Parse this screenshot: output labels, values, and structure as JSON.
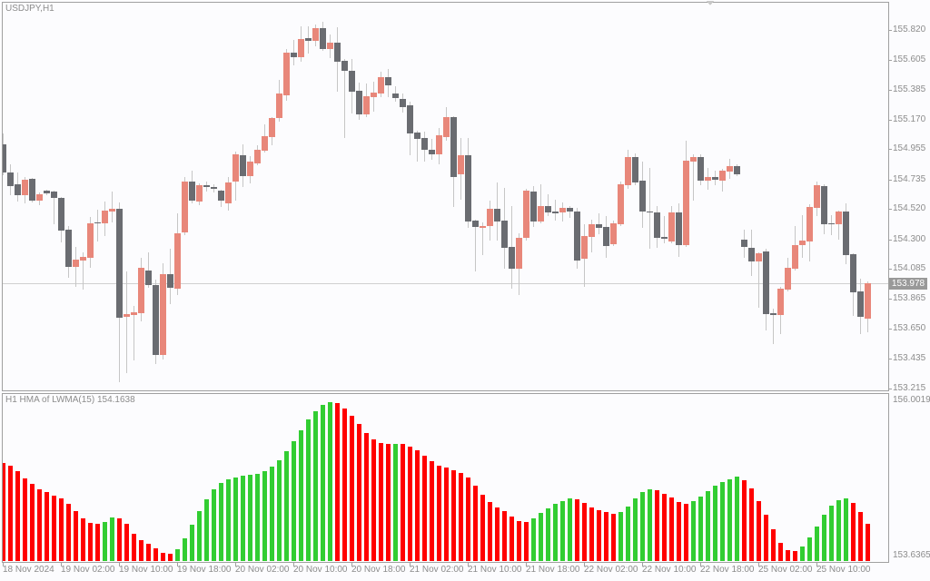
{
  "chart": {
    "symbol_title": "USDJPY,H1"
  },
  "price_axis": {
    "labels": [
      "155.820",
      "155.605",
      "155.385",
      "155.170",
      "154.955",
      "154.735",
      "154.520",
      "154.300",
      "154.085",
      "153.865",
      "153.650",
      "153.435",
      "153.215"
    ],
    "current_price": "153.978"
  },
  "indicator": {
    "title": "H1 HMA of LWMA(15) 154.1638",
    "scale_max": "156.0019",
    "scale_min": "153.6365"
  },
  "time_axis": {
    "labels": [
      {
        "text": "18 Nov 2024",
        "bar": 0
      },
      {
        "text": "19 Nov 02:00",
        "bar": 8
      },
      {
        "text": "19 Nov 10:00",
        "bar": 16
      },
      {
        "text": "19 Nov 18:00",
        "bar": 24
      },
      {
        "text": "20 Nov 02:00",
        "bar": 32
      },
      {
        "text": "20 Nov 10:00",
        "bar": 40
      },
      {
        "text": "20 Nov 18:00",
        "bar": 48
      },
      {
        "text": "21 Nov 02:00",
        "bar": 56
      },
      {
        "text": "21 Nov 10:00",
        "bar": 64
      },
      {
        "text": "21 Nov 18:00",
        "bar": 72
      },
      {
        "text": "22 Nov 02:00",
        "bar": 80
      },
      {
        "text": "22 Nov 10:00",
        "bar": 88
      },
      {
        "text": "22 Nov 18:00",
        "bar": 96
      },
      {
        "text": "25 Nov 02:00",
        "bar": 104
      },
      {
        "text": "25 Nov 10:00",
        "bar": 112
      }
    ]
  },
  "colors": {
    "bull": "#E8877A",
    "bear": "#6A6C71",
    "wick": "#C6C6C6",
    "hma_up": "#32CD32",
    "hma_down": "#FF0000",
    "price_line": "#D0D0D0",
    "axis_tick": "#A0A0A0",
    "shift_marker": "#C8C8C8"
  },
  "chart_data": [
    {
      "type": "candlestick",
      "title": "USDJPY,H1",
      "xlabel": "",
      "ylabel": "",
      "ylim": [
        153.202,
        156.018
      ],
      "yticks": [
        155.82,
        155.605,
        155.385,
        155.17,
        154.955,
        154.735,
        154.52,
        154.3,
        154.085,
        153.865,
        153.65,
        153.435,
        153.215
      ],
      "x_tick_labels": [
        "18 Nov 2024",
        "19 Nov 02:00",
        "19 Nov 10:00",
        "19 Nov 18:00",
        "20 Nov 02:00",
        "20 Nov 10:00",
        "20 Nov 18:00",
        "21 Nov 02:00",
        "21 Nov 10:00",
        "21 Nov 18:00",
        "22 Nov 02:00",
        "22 Nov 10:00",
        "22 Nov 18:00",
        "25 Nov 02:00",
        "25 Nov 10:00"
      ],
      "current_price": 153.978,
      "grid": false,
      "ohlc_fields": [
        "open",
        "high",
        "low",
        "close"
      ],
      "ohlc": [
        [
          154.989,
          155.068,
          154.772,
          154.785
        ],
        [
          154.785,
          154.844,
          154.626,
          154.686
        ],
        [
          154.699,
          154.785,
          154.58,
          154.62
        ],
        [
          154.62,
          154.752,
          154.567,
          154.732
        ],
        [
          154.738,
          154.745,
          154.573,
          154.58
        ],
        [
          154.58,
          154.639,
          154.554,
          154.626
        ],
        [
          154.653,
          154.659,
          154.626,
          154.633
        ],
        [
          154.646,
          154.653,
          154.415,
          154.6
        ],
        [
          154.6,
          154.607,
          154.283,
          154.362
        ],
        [
          154.369,
          154.395,
          154.026,
          154.099
        ],
        [
          154.099,
          154.244,
          153.96,
          154.151
        ],
        [
          154.145,
          154.204,
          153.94,
          154.171
        ],
        [
          154.165,
          154.461,
          154.099,
          154.415
        ],
        [
          154.422,
          154.514,
          154.29,
          154.415
        ],
        [
          154.415,
          154.573,
          154.33,
          154.508
        ],
        [
          154.501,
          154.646,
          154.428,
          154.521
        ],
        [
          154.521,
          154.567,
          153.268,
          153.729
        ],
        [
          153.736,
          154.066,
          153.334,
          153.756
        ],
        [
          153.749,
          153.815,
          153.426,
          153.769
        ],
        [
          153.762,
          154.165,
          153.71,
          154.092
        ],
        [
          154.072,
          154.204,
          153.954,
          153.967
        ],
        [
          153.967,
          154.006,
          153.4,
          153.459
        ],
        [
          153.459,
          154.125,
          153.433,
          154.046
        ],
        [
          154.046,
          154.231,
          153.835,
          153.947
        ],
        [
          153.94,
          154.488,
          153.901,
          154.343
        ],
        [
          154.349,
          154.752,
          154.336,
          154.719
        ],
        [
          154.719,
          154.798,
          154.567,
          154.58
        ],
        [
          154.573,
          154.705,
          154.554,
          154.692
        ],
        [
          154.692,
          154.719,
          154.653,
          154.679
        ],
        [
          154.679,
          154.699,
          154.646,
          154.666
        ],
        [
          154.653,
          154.659,
          154.541,
          154.58
        ],
        [
          154.56,
          154.752,
          154.514,
          154.712
        ],
        [
          154.719,
          154.936,
          154.587,
          154.916
        ],
        [
          154.91,
          154.989,
          154.686,
          154.758
        ],
        [
          154.758,
          154.903,
          154.712,
          154.864
        ],
        [
          154.851,
          154.982,
          154.844,
          154.949
        ],
        [
          154.943,
          155.134,
          154.936,
          155.048
        ],
        [
          155.042,
          155.187,
          154.989,
          155.18
        ],
        [
          155.18,
          155.457,
          155.161,
          155.358
        ],
        [
          155.345,
          155.681,
          155.312,
          155.655
        ],
        [
          155.655,
          155.747,
          155.569,
          155.622
        ],
        [
          155.622,
          155.846,
          155.596,
          155.754
        ],
        [
          155.761,
          155.846,
          155.655,
          155.741
        ],
        [
          155.741,
          155.86,
          155.708,
          155.833
        ],
        [
          155.833,
          155.879,
          155.675,
          155.681
        ],
        [
          155.681,
          155.787,
          155.622,
          155.728
        ],
        [
          155.728,
          155.84,
          155.378,
          155.589
        ],
        [
          155.596,
          155.609,
          155.042,
          155.523
        ],
        [
          155.523,
          155.609,
          155.22,
          155.371
        ],
        [
          155.378,
          155.437,
          155.174,
          155.207
        ],
        [
          155.207,
          155.431,
          155.193,
          155.339
        ],
        [
          155.332,
          155.444,
          155.233,
          155.365
        ],
        [
          155.358,
          155.517,
          155.339,
          155.477
        ],
        [
          155.477,
          155.536,
          155.339,
          155.418
        ],
        [
          155.358,
          155.411,
          155.306,
          155.325
        ],
        [
          155.319,
          155.358,
          155.226,
          155.259
        ],
        [
          155.273,
          155.299,
          154.916,
          155.068
        ],
        [
          155.075,
          155.088,
          154.87,
          155.029
        ],
        [
          155.035,
          155.081,
          154.87,
          154.949
        ],
        [
          154.949,
          155.029,
          154.884,
          154.916
        ],
        [
          154.916,
          155.108,
          154.851,
          155.055
        ],
        [
          155.042,
          155.259,
          155.022,
          155.187
        ],
        [
          155.187,
          155.193,
          154.541,
          154.752
        ],
        [
          154.771,
          155.035,
          154.593,
          154.91
        ],
        [
          154.91,
          155.035,
          154.389,
          154.428
        ],
        [
          154.435,
          154.442,
          154.072,
          154.389
        ],
        [
          154.382,
          154.422,
          154.191,
          154.395
        ],
        [
          154.395,
          154.58,
          154.297,
          154.521
        ],
        [
          154.521,
          154.712,
          154.297,
          154.428
        ],
        [
          154.435,
          154.672,
          154.092,
          154.237
        ],
        [
          154.244,
          154.541,
          153.947,
          154.086
        ],
        [
          154.086,
          154.343,
          153.901,
          154.31
        ],
        [
          154.31,
          154.666,
          154.297,
          154.653
        ],
        [
          154.646,
          154.686,
          154.395,
          154.428
        ],
        [
          154.428,
          154.699,
          154.422,
          154.541
        ],
        [
          154.541,
          154.626,
          154.475,
          154.494
        ],
        [
          154.501,
          154.587,
          154.442,
          154.488
        ],
        [
          154.494,
          154.567,
          154.435,
          154.527
        ],
        [
          154.527,
          154.541,
          154.461,
          154.501
        ],
        [
          154.501,
          154.527,
          154.092,
          154.145
        ],
        [
          154.158,
          154.409,
          153.96,
          154.323
        ],
        [
          154.316,
          154.442,
          154.211,
          154.409
        ],
        [
          154.409,
          154.488,
          154.343,
          154.382
        ],
        [
          154.389,
          154.468,
          154.171,
          154.25
        ],
        [
          154.264,
          154.435,
          154.257,
          154.415
        ],
        [
          154.409,
          154.719,
          154.402,
          154.699
        ],
        [
          154.692,
          154.949,
          154.672,
          154.897
        ],
        [
          154.897,
          154.923,
          154.699,
          154.712
        ],
        [
          154.725,
          154.864,
          154.389,
          154.501
        ],
        [
          154.501,
          154.818,
          154.237,
          154.494
        ],
        [
          154.494,
          154.541,
          154.244,
          154.31
        ],
        [
          154.316,
          154.468,
          154.277,
          154.303
        ],
        [
          154.283,
          154.541,
          154.277,
          154.494
        ],
        [
          154.494,
          154.56,
          154.178,
          154.257
        ],
        [
          154.257,
          155.015,
          154.25,
          154.87
        ],
        [
          154.864,
          154.916,
          154.587,
          154.897
        ],
        [
          154.897,
          154.916,
          154.699,
          154.725
        ],
        [
          154.725,
          154.818,
          154.666,
          154.752
        ],
        [
          154.752,
          154.798,
          154.699,
          154.732
        ],
        [
          154.725,
          154.811,
          154.653,
          154.798
        ],
        [
          154.791,
          154.884,
          154.745,
          154.831
        ],
        [
          154.831,
          154.844,
          154.765,
          154.771
        ],
        [
          154.297,
          154.369,
          154.171,
          154.244
        ],
        [
          154.237,
          154.369,
          154.039,
          154.138
        ],
        [
          154.138,
          154.204,
          153.808,
          154.198
        ],
        [
          154.211,
          154.231,
          153.644,
          153.756
        ],
        [
          153.762,
          153.795,
          153.545,
          153.749
        ],
        [
          153.749,
          153.954,
          153.617,
          153.94
        ],
        [
          153.934,
          154.165,
          153.927,
          154.092
        ],
        [
          154.086,
          154.395,
          154.079,
          154.257
        ],
        [
          154.257,
          154.475,
          154.171,
          154.29
        ],
        [
          154.283,
          154.554,
          154.145,
          154.534
        ],
        [
          154.527,
          154.719,
          154.475,
          154.692
        ],
        [
          154.686,
          154.699,
          154.343,
          154.409
        ],
        [
          154.415,
          154.475,
          154.336,
          154.409
        ],
        [
          154.409,
          154.507,
          154.303,
          154.501
        ],
        [
          154.501,
          154.56,
          154.125,
          154.184
        ],
        [
          154.191,
          154.198,
          153.749,
          153.914
        ],
        [
          153.921,
          154.013,
          153.617,
          153.736
        ],
        [
          153.723,
          153.993,
          153.63,
          153.978
        ]
      ]
    },
    {
      "type": "bar",
      "title": "H1 HMA of LWMA(15)",
      "last_value": 154.1638,
      "ylim": [
        153.6365,
        156.0019
      ],
      "yticks": [
        156.0019,
        153.6365
      ],
      "x_tick_labels": [
        "18 Nov 2024",
        "19 Nov 02:00",
        "19 Nov 10:00",
        "19 Nov 18:00",
        "20 Nov 02:00",
        "20 Nov 10:00",
        "20 Nov 18:00",
        "21 Nov 02:00",
        "21 Nov 10:00",
        "21 Nov 18:00",
        "22 Nov 02:00",
        "22 Nov 10:00",
        "22 Nov 18:00",
        "25 Nov 02:00",
        "25 Nov 10:00"
      ],
      "values": [
        155.025,
        154.986,
        154.909,
        154.806,
        154.729,
        154.652,
        154.614,
        154.562,
        154.524,
        154.446,
        154.344,
        154.241,
        154.176,
        154.164,
        154.189,
        154.254,
        154.241,
        154.164,
        154.022,
        153.932,
        153.881,
        153.817,
        153.752,
        153.739,
        153.804,
        153.958,
        154.151,
        154.344,
        154.511,
        154.652,
        154.742,
        154.794,
        154.819,
        154.845,
        154.858,
        154.871,
        154.909,
        154.974,
        155.064,
        155.192,
        155.333,
        155.488,
        155.642,
        155.758,
        155.848,
        155.886,
        155.873,
        155.796,
        155.693,
        155.578,
        155.449,
        155.359,
        155.308,
        155.295,
        155.295,
        155.295,
        155.256,
        155.205,
        155.128,
        155.051,
        154.986,
        154.961,
        154.922,
        154.884,
        154.819,
        154.704,
        154.575,
        154.472,
        154.395,
        154.344,
        154.267,
        154.202,
        154.189,
        154.241,
        154.318,
        154.382,
        154.446,
        154.485,
        154.524,
        154.511,
        154.459,
        154.395,
        154.357,
        154.331,
        154.305,
        154.331,
        154.408,
        154.524,
        154.614,
        154.652,
        154.639,
        154.588,
        154.536,
        154.472,
        154.446,
        154.485,
        154.549,
        154.626,
        154.704,
        154.755,
        154.794,
        154.832,
        154.781,
        154.665,
        154.485,
        154.292,
        154.087,
        153.894,
        153.791,
        153.778,
        153.842,
        153.971,
        154.125,
        154.292,
        154.421,
        154.498,
        154.524,
        154.459,
        154.331,
        154.1638
      ],
      "direction": [
        "dn",
        "dn",
        "dn",
        "dn",
        "dn",
        "dn",
        "dn",
        "dn",
        "dn",
        "dn",
        "dn",
        "dn",
        "dn",
        "dn",
        "up",
        "up",
        "dn",
        "dn",
        "dn",
        "dn",
        "dn",
        "dn",
        "dn",
        "dn",
        "up",
        "up",
        "up",
        "up",
        "up",
        "up",
        "up",
        "up",
        "up",
        "up",
        "up",
        "up",
        "up",
        "up",
        "up",
        "up",
        "up",
        "up",
        "up",
        "up",
        "up",
        "up",
        "dn",
        "dn",
        "dn",
        "dn",
        "dn",
        "dn",
        "dn",
        "dn",
        "up",
        "dn",
        "dn",
        "dn",
        "dn",
        "dn",
        "dn",
        "dn",
        "dn",
        "dn",
        "dn",
        "dn",
        "dn",
        "dn",
        "dn",
        "dn",
        "dn",
        "dn",
        "dn",
        "up",
        "up",
        "up",
        "up",
        "up",
        "up",
        "dn",
        "dn",
        "dn",
        "dn",
        "dn",
        "dn",
        "up",
        "up",
        "up",
        "up",
        "up",
        "dn",
        "dn",
        "dn",
        "dn",
        "dn",
        "up",
        "up",
        "up",
        "up",
        "up",
        "up",
        "up",
        "dn",
        "dn",
        "dn",
        "dn",
        "dn",
        "dn",
        "dn",
        "dn",
        "up",
        "up",
        "up",
        "up",
        "up",
        "up",
        "up",
        "dn",
        "dn",
        "dn"
      ]
    }
  ]
}
